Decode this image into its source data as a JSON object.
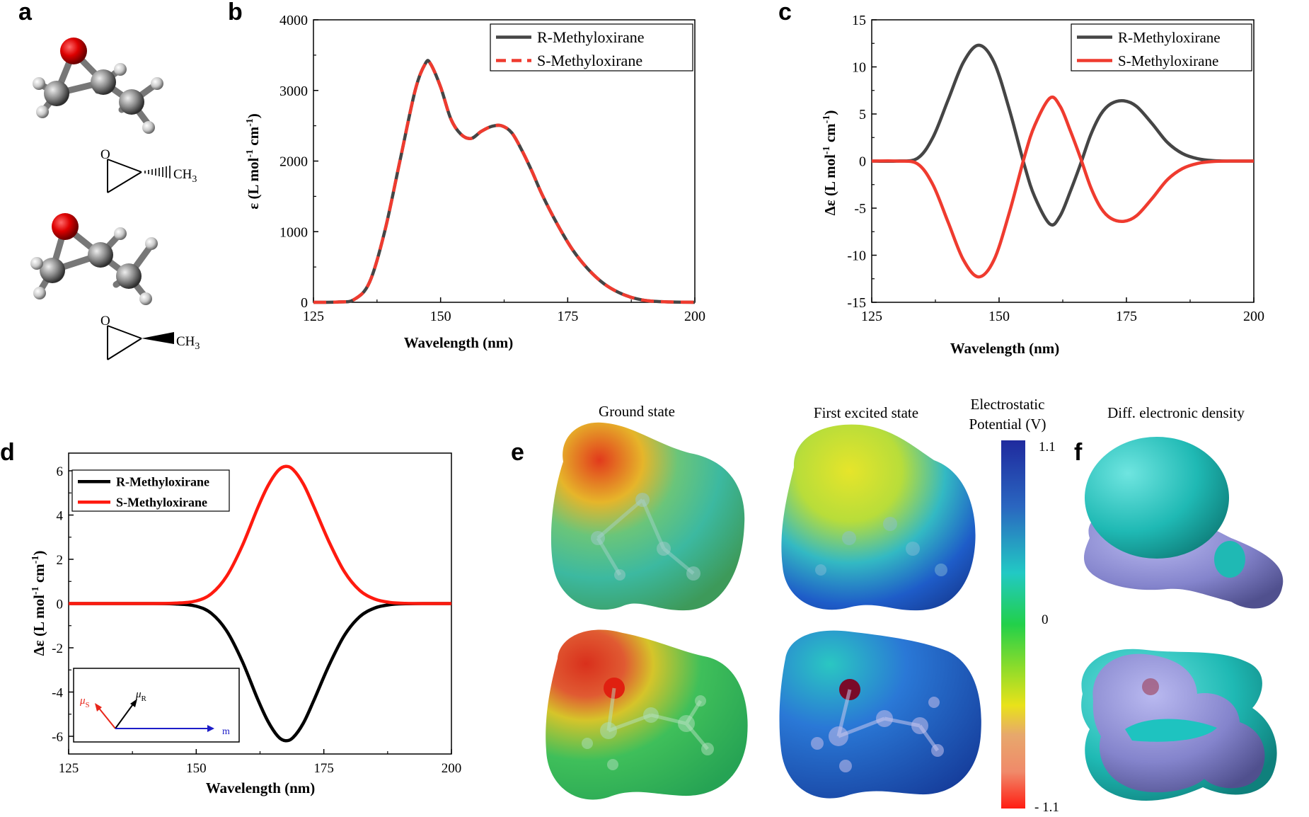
{
  "panel_labels": {
    "a": "a",
    "b": "b",
    "c": "c",
    "d": "d",
    "e": "e",
    "f": "f"
  },
  "chem": {
    "methyl_label": "CH3",
    "methyl_base": "CH",
    "methyl_sub": "3",
    "oxygen": "O",
    "hydrogen": "H",
    "carbon": "C"
  },
  "colors": {
    "r_series": "#454545",
    "s_series": "#ef3b2f",
    "r_series_d": "#000000",
    "s_series_d": "#ff1a0f",
    "mu_s": "#e8261a",
    "mu_r": "#000000",
    "m_vec": "#1d1dc8"
  },
  "panel_e": {
    "ground_title": "Ground state",
    "excited_title": "First excited state",
    "colorbar_title_1": "Electrostatic",
    "colorbar_title_2": "Potential (V)",
    "ticks": [
      "1.1",
      "0",
      "- 1.1"
    ]
  },
  "panel_f": {
    "title": "Diff. electronic density"
  },
  "panel_d_inset": {
    "mu_s": "μ",
    "mu_s_sub": "S",
    "mu_r": "μ",
    "mu_r_sub": "R",
    "m": "m"
  },
  "chart_data": [
    {
      "id": "b",
      "type": "line",
      "title": "",
      "xlabel": "Wavelength (nm)",
      "ylabel": "ε (L mol⁻¹ cm⁻¹)",
      "ylabel_parts": {
        "a": "ε (L mol",
        "s1": "-1",
        "b": " cm",
        "s2": "-1",
        "c": ")"
      },
      "xlim": [
        125,
        200
      ],
      "ylim": [
        0,
        4000
      ],
      "xticks": [
        125,
        150,
        175,
        200
      ],
      "yticks": [
        0,
        1000,
        2000,
        3000,
        4000
      ],
      "legend_position": "top-right",
      "series": [
        {
          "name": "R-Methyloxirane",
          "style": "solid",
          "x": [
            125,
            130,
            133,
            136,
            139,
            142,
            145,
            147,
            148,
            150,
            152,
            154,
            156,
            158,
            160,
            162,
            164,
            166,
            168,
            170,
            173,
            176,
            179,
            182,
            185,
            188,
            191,
            195,
            200
          ],
          "y": [
            0,
            5,
            40,
            280,
            1000,
            2000,
            3000,
            3380,
            3380,
            3050,
            2600,
            2380,
            2320,
            2420,
            2490,
            2500,
            2400,
            2150,
            1850,
            1520,
            1100,
            740,
            470,
            270,
            140,
            60,
            20,
            5,
            0
          ]
        },
        {
          "name": "S-Methyloxirane",
          "style": "dashed",
          "x": [
            125,
            130,
            133,
            136,
            139,
            142,
            145,
            147,
            148,
            150,
            152,
            154,
            156,
            158,
            160,
            162,
            164,
            166,
            168,
            170,
            173,
            176,
            179,
            182,
            185,
            188,
            191,
            195,
            200
          ],
          "y": [
            0,
            5,
            40,
            280,
            1000,
            2000,
            3000,
            3380,
            3380,
            3050,
            2600,
            2380,
            2320,
            2420,
            2490,
            2500,
            2400,
            2150,
            1850,
            1520,
            1100,
            740,
            470,
            270,
            140,
            60,
            20,
            5,
            0
          ]
        }
      ]
    },
    {
      "id": "c",
      "type": "line",
      "title": "",
      "xlabel": "Wavelength (nm)",
      "ylabel": "Δε (L mol⁻¹ cm⁻¹)",
      "ylabel_parts": {
        "a": "Δε  (L mol",
        "s1": "-1",
        "b": " cm",
        "s2": "-1",
        "c": ")"
      },
      "xlim": [
        125,
        200
      ],
      "ylim": [
        -15,
        15
      ],
      "xticks": [
        125,
        150,
        175,
        200
      ],
      "yticks": [
        -15,
        -10,
        -5,
        0,
        5,
        10,
        15
      ],
      "legend_position": "top-right",
      "series": [
        {
          "name": "R-Methyloxirane",
          "style": "solid",
          "x": [
            125,
            130,
            134,
            137,
            140,
            143,
            146,
            149,
            152,
            155,
            157,
            160,
            162,
            164,
            166,
            168,
            170,
            172,
            174.5,
            177,
            180,
            183,
            186,
            189,
            192,
            196,
            200
          ],
          "y": [
            0,
            0,
            0.3,
            2.5,
            6.5,
            10.5,
            12.3,
            10.5,
            5.5,
            -0.5,
            -3.8,
            -6.7,
            -5.8,
            -3.2,
            -0.3,
            2.8,
            5,
            6.1,
            6.4,
            5.8,
            4,
            2,
            0.8,
            0.25,
            0.05,
            0,
            0
          ]
        },
        {
          "name": "S-Methyloxirane",
          "style": "solid",
          "x": [
            125,
            130,
            134,
            137,
            140,
            143,
            146,
            149,
            152,
            155,
            157,
            160,
            162,
            164,
            166,
            168,
            170,
            172,
            174.5,
            177,
            180,
            183,
            186,
            189,
            192,
            196,
            200
          ],
          "y": [
            0,
            0,
            -0.3,
            -2.5,
            -6.5,
            -10.5,
            -12.3,
            -10.5,
            -5.5,
            0.5,
            3.8,
            6.7,
            5.8,
            3.2,
            0.3,
            -2.8,
            -5,
            -6.1,
            -6.4,
            -5.8,
            -4,
            -2,
            -0.8,
            -0.25,
            -0.05,
            0,
            0
          ]
        }
      ]
    },
    {
      "id": "d",
      "type": "line",
      "title": "",
      "xlabel": "Wavelength (nm)",
      "ylabel": "Δε (L mol⁻¹ cm⁻¹)",
      "ylabel_parts": {
        "a": "Δε  (L mol",
        "s1": "-1",
        "b": " cm",
        "s2": "-1",
        "c": ")"
      },
      "xlim": [
        125,
        200
      ],
      "ylim": [
        -6.8,
        6.8
      ],
      "xticks": [
        125,
        150,
        175,
        200
      ],
      "yticks": [
        -6,
        -4,
        -2,
        0,
        2,
        4,
        6
      ],
      "legend_position": "top-left",
      "series": [
        {
          "name": "R-Methyloxirane",
          "style": "solid",
          "x": [
            125,
            140,
            146,
            150,
            153,
            156,
            159,
            162,
            164,
            166,
            167.5,
            169,
            171,
            173,
            176,
            179,
            182,
            185,
            188,
            191,
            195,
            200
          ],
          "y": [
            0,
            0,
            -0.02,
            -0.12,
            -0.45,
            -1.25,
            -2.6,
            -4.3,
            -5.3,
            -6.0,
            -6.2,
            -6.05,
            -5.4,
            -4.4,
            -2.8,
            -1.45,
            -0.6,
            -0.2,
            -0.05,
            -0.01,
            0,
            0
          ]
        },
        {
          "name": "S-Methyloxirane",
          "style": "solid",
          "x": [
            125,
            140,
            146,
            150,
            153,
            156,
            159,
            162,
            164,
            166,
            167.5,
            169,
            171,
            173,
            176,
            179,
            182,
            185,
            188,
            191,
            195,
            200
          ],
          "y": [
            0,
            0,
            0.02,
            0.12,
            0.45,
            1.25,
            2.6,
            4.3,
            5.3,
            6.0,
            6.2,
            6.05,
            5.4,
            4.4,
            2.8,
            1.45,
            0.6,
            0.2,
            0.05,
            0.01,
            0,
            0
          ]
        }
      ]
    }
  ]
}
